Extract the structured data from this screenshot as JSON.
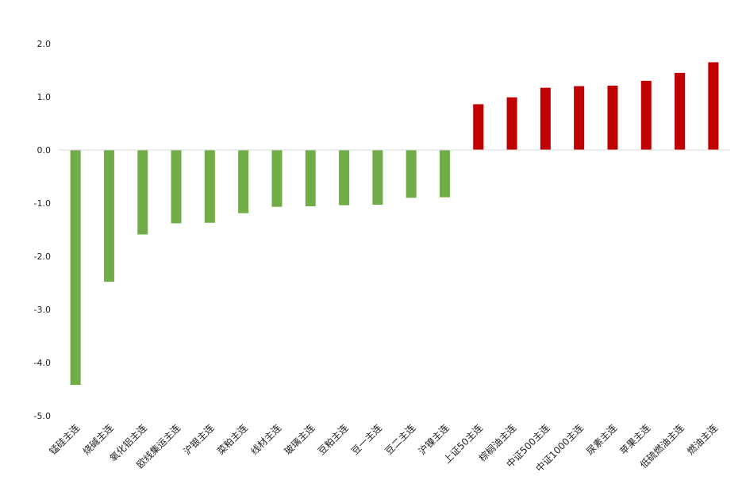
{
  "chart_data": {
    "type": "bar",
    "title": "",
    "xlabel": "",
    "ylabel": "",
    "ylim": [
      -5.0,
      2.0
    ],
    "yticks": [
      2.0,
      1.0,
      0.0,
      -1.0,
      -2.0,
      -3.0,
      -4.0,
      -5.0
    ],
    "ytick_labels": [
      "2.0",
      "1.0",
      "0.0",
      "-1.0",
      "-2.0",
      "-3.0",
      "-4.0",
      "-5.0"
    ],
    "grid": false,
    "legend": "none",
    "colors": {
      "negative": "#70ad47",
      "positive": "#c00000",
      "baseline": "#d9d9d9"
    },
    "categories": [
      "锰硅主连",
      "烧碱主连",
      "氧化铝主连",
      "欧线集运主连",
      "沪银主连",
      "菜粕主连",
      "线材主连",
      "玻璃主连",
      "豆粕主连",
      "豆一主连",
      "豆二主连",
      "沪镍主连",
      "上证50主连",
      "棕榈油主连",
      "中证500主连",
      "中证1000主连",
      "尿素主连",
      "苹果主连",
      "低硫燃油主连",
      "燃油主连"
    ],
    "values": [
      -4.42,
      -2.48,
      -1.59,
      -1.38,
      -1.37,
      -1.19,
      -1.07,
      -1.06,
      -1.04,
      -1.03,
      -0.9,
      -0.89,
      0.86,
      0.99,
      1.17,
      1.2,
      1.21,
      1.3,
      1.45,
      1.65
    ]
  }
}
